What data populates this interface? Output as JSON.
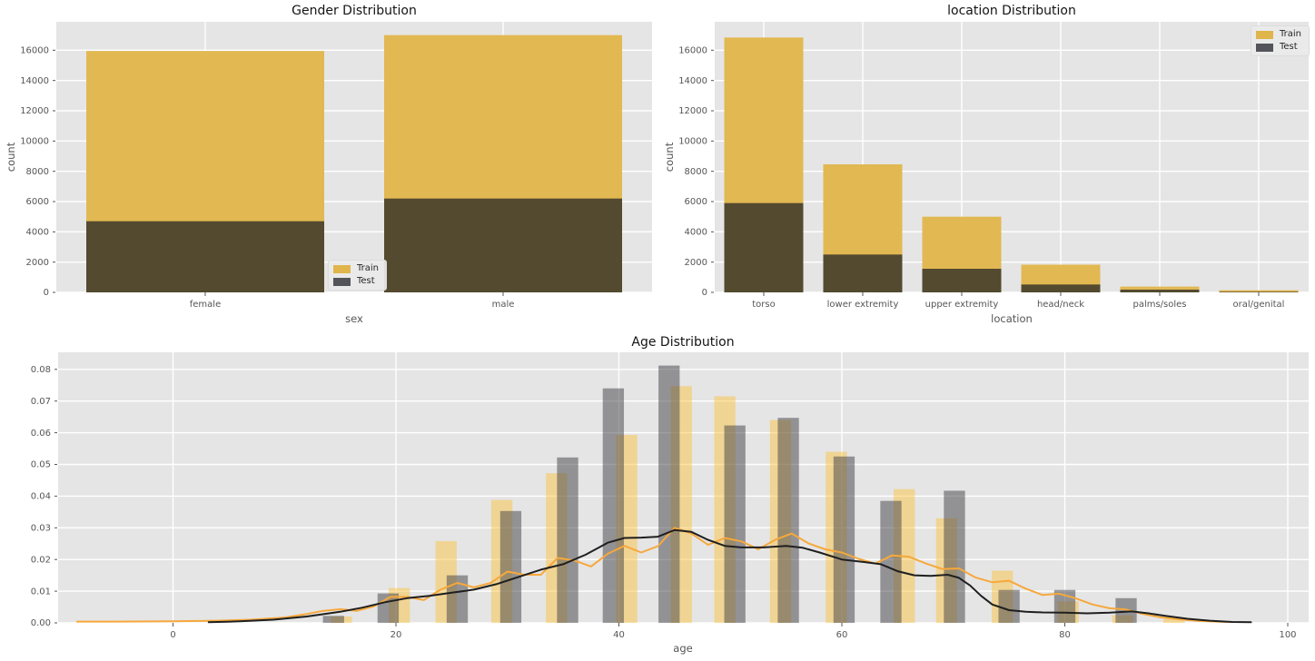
{
  "palette": {
    "figure_bg": "#ffffff",
    "panel_bg": "#e5e5e5",
    "grid": "#ffffff",
    "bar_train": "#e2b852",
    "bar_test_overlap": "#534a30",
    "legend_train_swatch": "#e0b54b",
    "legend_test_swatch": "#54555b",
    "hist_train": "rgba(253,191,49,0.45)",
    "hist_test": "rgba(64,64,70,0.5)",
    "kde_train": "#f6a83b",
    "kde_test": "#1f1f1f",
    "tick_text": "#555555",
    "axis_text": "#555555",
    "title_text": "#141414",
    "legend_text": "#262626"
  },
  "legend": {
    "train_label": "Train",
    "test_label": "Test"
  },
  "chart_data": [
    {
      "type": "bar",
      "title": "Gender Distribution",
      "xlabel": "sex",
      "ylabel": "count",
      "categories": [
        "female",
        "male"
      ],
      "series": [
        {
          "name": "Train",
          "bar_top": [
            15950,
            17000
          ]
        },
        {
          "name": "Test",
          "bar_top": [
            4700,
            6200
          ]
        }
      ],
      "ylim": [
        0,
        17900
      ],
      "y_ticks": [
        0,
        2000,
        4000,
        6000,
        8000,
        10000,
        12000,
        14000,
        16000
      ],
      "y_tick_labels": [
        "0",
        "2000",
        "4000",
        "6000",
        "8000",
        "10000",
        "12000",
        "14000",
        "16000"
      ],
      "grid": true,
      "legend_position": "inside lower-center"
    },
    {
      "type": "bar",
      "title": "location Distribution",
      "xlabel": "location",
      "ylabel": "count",
      "categories": [
        "torso",
        "lower extremity",
        "upper extremity",
        "head/neck",
        "palms/soles",
        "oral/genital"
      ],
      "series": [
        {
          "name": "Train",
          "bar_top": [
            16840,
            8460,
            5000,
            1830,
            380,
            140
          ]
        },
        {
          "name": "Test",
          "bar_top": [
            5900,
            2500,
            1560,
            520,
            180,
            40
          ]
        }
      ],
      "ylim": [
        0,
        17900
      ],
      "y_ticks": [
        0,
        2000,
        4000,
        6000,
        8000,
        10000,
        12000,
        14000,
        16000
      ],
      "y_tick_labels": [
        "0",
        "2000",
        "4000",
        "6000",
        "8000",
        "10000",
        "12000",
        "14000",
        "16000"
      ],
      "grid": true,
      "legend_position": "upper right"
    },
    {
      "type": "histogram_kde",
      "title": "Age Distribution",
      "xlabel": "age",
      "ylabel": "",
      "xlim": [
        -10.3,
        101.9
      ],
      "ylim": [
        0,
        0.0854
      ],
      "x_ticks": [
        0,
        20,
        40,
        60,
        80,
        100
      ],
      "x_tick_labels": [
        "0",
        "20",
        "40",
        "60",
        "80",
        "100"
      ],
      "y_ticks": [
        0,
        0.01,
        0.02,
        0.03,
        0.04,
        0.05,
        0.06,
        0.07,
        0.08
      ],
      "y_tick_labels": [
        "0.00",
        "0.01",
        "0.02",
        "0.03",
        "0.04",
        "0.05",
        "0.06",
        "0.07",
        "0.08"
      ],
      "grid": true,
      "bin_width_years": 1.9,
      "bins": [
        {
          "test_x": 14.4,
          "test": 0.0022,
          "train_x": 15.1,
          "train": 0.002
        },
        {
          "test_x": 19.3,
          "test": 0.0093,
          "train_x": 20.3,
          "train": 0.011
        },
        {
          "train_x": 24.5,
          "train": 0.0258,
          "test_x": 25.5,
          "test": 0.015
        },
        {
          "train_x": 29.5,
          "train": 0.0388,
          "test_x": 30.3,
          "test": 0.0353
        },
        {
          "train_x": 34.4,
          "train": 0.0472,
          "test_x": 35.4,
          "test": 0.0522
        },
        {
          "test_x": 39.5,
          "test": 0.074,
          "train_x": 40.7,
          "train": 0.0593
        },
        {
          "test_x": 44.5,
          "test": 0.0812,
          "train_x": 45.6,
          "train": 0.0747
        },
        {
          "train_x": 49.5,
          "train": 0.0715,
          "test_x": 50.4,
          "test": 0.0623
        },
        {
          "train_x": 54.5,
          "train": 0.064,
          "test_x": 55.2,
          "test": 0.0647
        },
        {
          "train_x": 59.5,
          "train": 0.054,
          "test_x": 60.2,
          "test": 0.0525
        },
        {
          "test_x": 64.4,
          "test": 0.0385,
          "train_x": 65.6,
          "train": 0.0422
        },
        {
          "train_x": 69.4,
          "train": 0.033,
          "test_x": 70.1,
          "test": 0.0417
        },
        {
          "train_x": 74.4,
          "train": 0.0165,
          "test_x": 75.0,
          "test": 0.0104
        },
        {
          "test_x": 80.0,
          "test": 0.0104,
          "train_x": 80.3,
          "train": 0.0068
        },
        {
          "test_x": 85.5,
          "test": 0.0078,
          "train_x": 85.2,
          "train": 0.0024
        },
        {
          "train_x": 89.8,
          "train": 0.0012,
          "test_x": 89.8,
          "test": 0
        }
      ],
      "kde": [
        {
          "name": "Train",
          "points": [
            [
              -8.6,
              0.0004
            ],
            [
              -5,
              0.0004
            ],
            [
              0,
              0.0005
            ],
            [
              4,
              0.0007
            ],
            [
              7,
              0.001
            ],
            [
              10,
              0.0017
            ],
            [
              12,
              0.0028
            ],
            [
              13.5,
              0.0038
            ],
            [
              15,
              0.0043
            ],
            [
              16.5,
              0.0038
            ],
            [
              18,
              0.0052
            ],
            [
              19.5,
              0.0082
            ],
            [
              21,
              0.0082
            ],
            [
              22.5,
              0.0072
            ],
            [
              24,
              0.0105
            ],
            [
              25.5,
              0.0126
            ],
            [
              27,
              0.0112
            ],
            [
              28.5,
              0.0126
            ],
            [
              30,
              0.0162
            ],
            [
              31.5,
              0.0152
            ],
            [
              33,
              0.0152
            ],
            [
              34.5,
              0.0205
            ],
            [
              36,
              0.0197
            ],
            [
              37.5,
              0.0178
            ],
            [
              39,
              0.0218
            ],
            [
              40.5,
              0.0243
            ],
            [
              42,
              0.0222
            ],
            [
              43.5,
              0.0242
            ],
            [
              45,
              0.03
            ],
            [
              46.5,
              0.0282
            ],
            [
              48,
              0.0246
            ],
            [
              49.5,
              0.0268
            ],
            [
              51,
              0.0257
            ],
            [
              52.5,
              0.0232
            ],
            [
              54,
              0.0262
            ],
            [
              55.5,
              0.0282
            ],
            [
              57,
              0.0251
            ],
            [
              58.5,
              0.0232
            ],
            [
              60,
              0.0222
            ],
            [
              61.5,
              0.0202
            ],
            [
              63,
              0.0187
            ],
            [
              64.5,
              0.0213
            ],
            [
              66,
              0.0209
            ],
            [
              67.5,
              0.0188
            ],
            [
              69,
              0.017
            ],
            [
              70.5,
              0.0172
            ],
            [
              72,
              0.0143
            ],
            [
              73.5,
              0.0128
            ],
            [
              75,
              0.0133
            ],
            [
              76.5,
              0.0108
            ],
            [
              78,
              0.0088
            ],
            [
              79.5,
              0.0092
            ],
            [
              81,
              0.0077
            ],
            [
              82.5,
              0.0058
            ],
            [
              84,
              0.0046
            ],
            [
              85.5,
              0.0042
            ],
            [
              87,
              0.0028
            ],
            [
              88.5,
              0.0018
            ],
            [
              90,
              0.0012
            ],
            [
              92,
              0.0006
            ],
            [
              94.5,
              0.0003
            ]
          ]
        },
        {
          "name": "Test",
          "points": [
            [
              3.2,
              0.0002
            ],
            [
              6,
              0.0005
            ],
            [
              9,
              0.001
            ],
            [
              12,
              0.002
            ],
            [
              15,
              0.0035
            ],
            [
              17,
              0.0048
            ],
            [
              19,
              0.0065
            ],
            [
              21,
              0.0078
            ],
            [
              23,
              0.0085
            ],
            [
              25,
              0.0095
            ],
            [
              27,
              0.0105
            ],
            [
              29,
              0.0122
            ],
            [
              31,
              0.0145
            ],
            [
              33,
              0.0168
            ],
            [
              35,
              0.0185
            ],
            [
              37,
              0.0215
            ],
            [
              39,
              0.0253
            ],
            [
              40.5,
              0.0268
            ],
            [
              42,
              0.0269
            ],
            [
              43.5,
              0.0272
            ],
            [
              45,
              0.0293
            ],
            [
              46.5,
              0.0287
            ],
            [
              48,
              0.0262
            ],
            [
              49.5,
              0.0243
            ],
            [
              51,
              0.0238
            ],
            [
              53,
              0.0238
            ],
            [
              55,
              0.0243
            ],
            [
              56.5,
              0.0237
            ],
            [
              58,
              0.0222
            ],
            [
              60,
              0.02
            ],
            [
              62,
              0.0192
            ],
            [
              63.5,
              0.0185
            ],
            [
              65,
              0.0163
            ],
            [
              66.5,
              0.015
            ],
            [
              68,
              0.0148
            ],
            [
              69.5,
              0.0152
            ],
            [
              70.5,
              0.0142
            ],
            [
              71.5,
              0.0118
            ],
            [
              72.5,
              0.0085
            ],
            [
              73.5,
              0.0058
            ],
            [
              75,
              0.004
            ],
            [
              76.5,
              0.0035
            ],
            [
              78,
              0.0033
            ],
            [
              80,
              0.0032
            ],
            [
              82,
              0.003
            ],
            [
              84,
              0.0032
            ],
            [
              86,
              0.0036
            ],
            [
              87.5,
              0.003
            ],
            [
              89,
              0.0022
            ],
            [
              91,
              0.0013
            ],
            [
              93,
              0.0007
            ],
            [
              95,
              0.0003
            ],
            [
              96.7,
              0.0002
            ]
          ]
        }
      ]
    }
  ]
}
